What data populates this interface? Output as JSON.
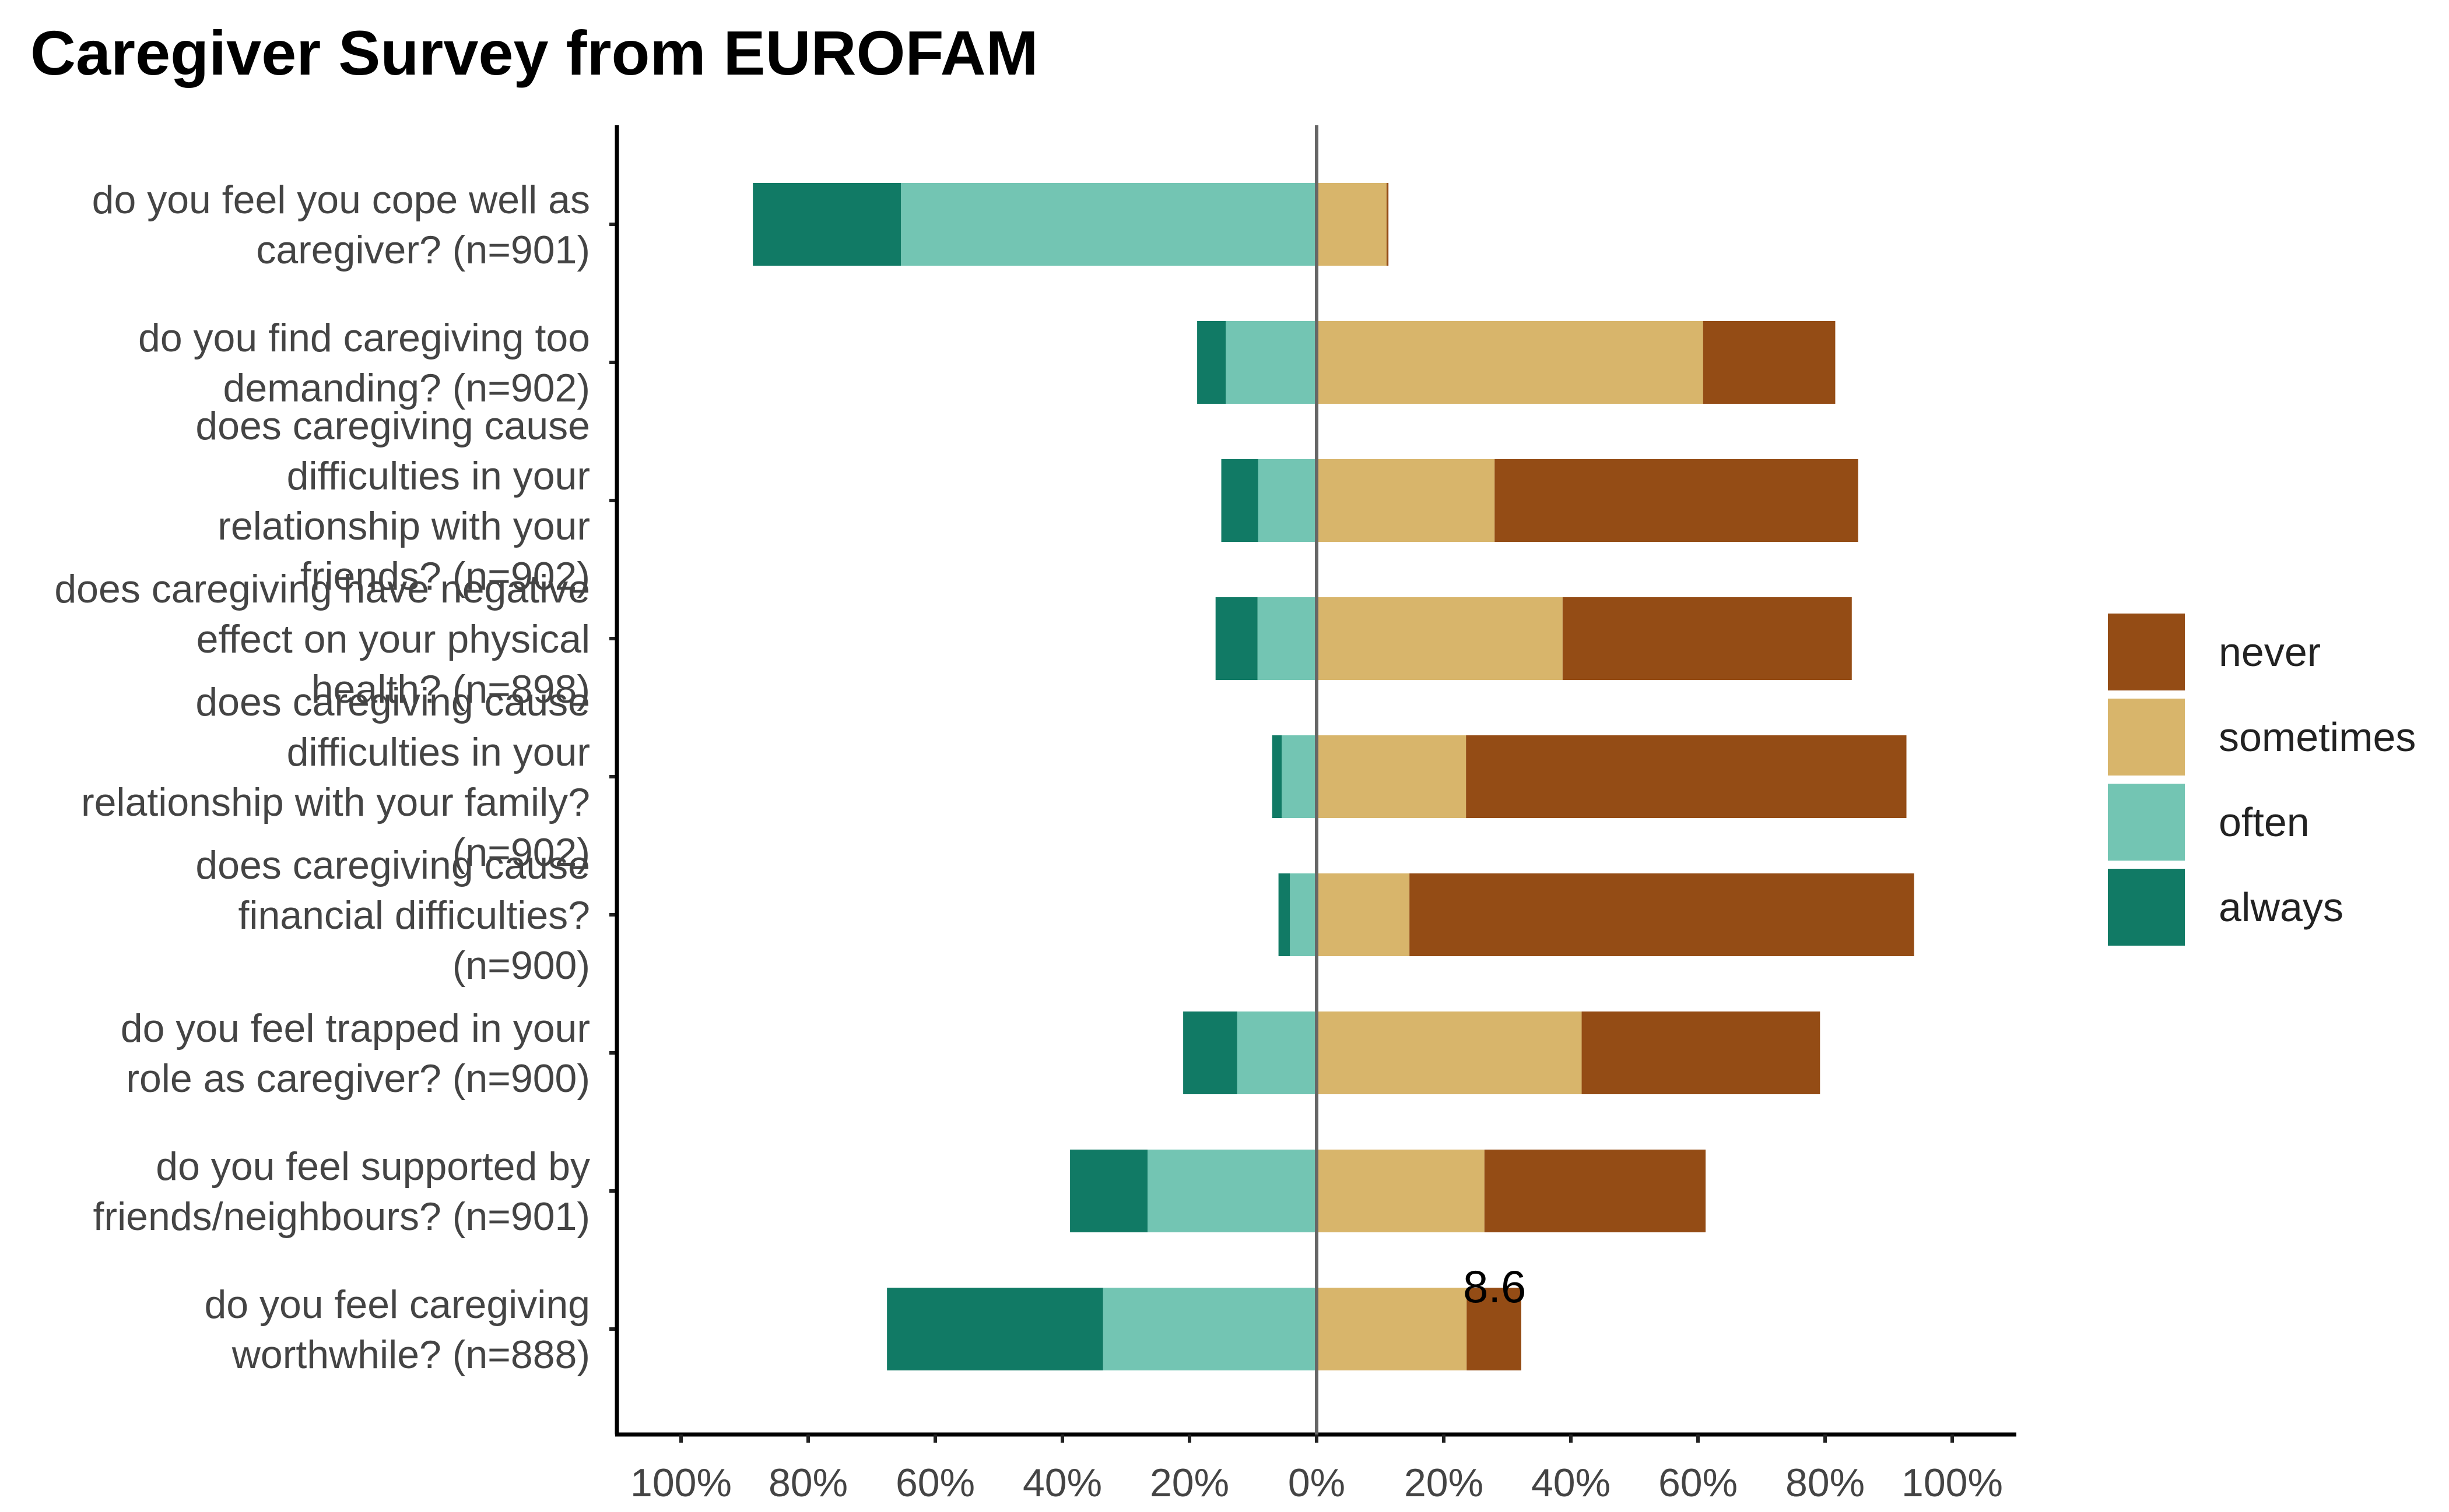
{
  "chart_data": {
    "type": "bar",
    "orientation": "horizontal-diverging",
    "title": "Caregiver Survey from EUROFAM",
    "xlabel": "",
    "ylabel": "",
    "xlim": [
      -1.0,
      1.0
    ],
    "x_tick_labels": [
      "100%",
      "80%",
      "60%",
      "40%",
      "20%",
      "0%",
      "20%",
      "40%",
      "60%",
      "80%",
      "100%"
    ],
    "x_ticks": [
      -1.0,
      -0.8,
      -0.6,
      -0.4,
      -0.2,
      0,
      0.2,
      0.4,
      0.6,
      0.8,
      1.0
    ],
    "legend_position": "right",
    "categories": [
      "do you feel you cope well as caregiver? (n=901)",
      "do you find caregiving too demanding? (n=902)",
      "does caregiving cause difficulties in your relationship with your friends? (n=902)",
      "does caregiving have negative effect on your physical health? (n=898)",
      "does caregiving cause difficulties in your relationship with your family? (n=902)",
      "does caregiving cause financial difficulties? (n=900)",
      "do you feel trapped in your role as caregiver? (n=900)",
      "do you feel supported by friends/neighbours? (n=901)",
      "do you feel caregiving worthwhile? (n=888)"
    ],
    "category_lines": [
      [
        "do you feel you cope well as",
        "caregiver? (n=901)"
      ],
      [
        "do you find caregiving too",
        "demanding? (n=902)"
      ],
      [
        "does caregiving cause",
        "difficulties in your",
        "relationship with your",
        "friends? (n=902)"
      ],
      [
        "does caregiving have negative",
        "effect on your physical",
        "health? (n=898)"
      ],
      [
        "does caregiving cause",
        "difficulties in your",
        "relationship with your family?",
        "(n=902)"
      ],
      [
        "does caregiving cause",
        "financial difficulties?",
        "(n=900)"
      ],
      [
        "do you feel trapped in your",
        "role as caregiver? (n=900)"
      ],
      [
        "do you feel supported by",
        "friends/neighbours? (n=901)"
      ],
      [
        "do you feel caregiving",
        "worthwhile? (n=888)"
      ]
    ],
    "series": [
      {
        "name": "always",
        "color": "#117a65",
        "side": "negative",
        "values": [
          0.233,
          0.045,
          0.058,
          0.066,
          0.015,
          0.018,
          0.085,
          0.122,
          0.34
        ]
      },
      {
        "name": "often",
        "color": "#73c5b3",
        "side": "negative",
        "values": [
          0.654,
          0.143,
          0.092,
          0.093,
          0.055,
          0.042,
          0.125,
          0.266,
          0.336
        ]
      },
      {
        "name": "sometimes",
        "color": "#d8b56b",
        "side": "positive",
        "values": [
          0.11,
          0.608,
          0.28,
          0.387,
          0.235,
          0.146,
          0.417,
          0.264,
          0.236
        ]
      },
      {
        "name": "never",
        "color": "#944c15",
        "side": "positive",
        "values": [
          0.003,
          0.208,
          0.572,
          0.455,
          0.693,
          0.794,
          0.375,
          0.348,
          0.086
        ]
      }
    ],
    "legend_order": [
      "never",
      "sometimes",
      "often",
      "always"
    ],
    "annotations": [
      {
        "text": "8.6",
        "category_index": 8,
        "x": 0.28
      }
    ],
    "grid": false
  }
}
